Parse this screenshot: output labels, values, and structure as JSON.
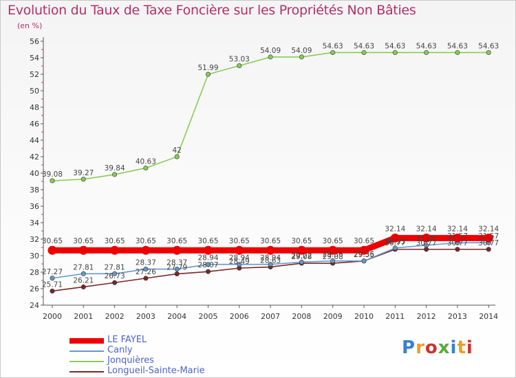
{
  "title": "Evolution du Taux de Taxe Foncière sur les Propriétés Non Bâties",
  "unit": "(en %)",
  "logo": {
    "text": "Proxiti",
    "colors": [
      "#3a7fcf",
      "#e8a020",
      "#cc3333",
      "#5aaa3a",
      "#3a7fcf",
      "#e8a020",
      "#cc3333"
    ]
  },
  "chart_data": {
    "type": "line",
    "title": "Evolution du Taux de Taxe Foncière sur les Propriétés Non Bâties",
    "ylabel": "(en %)",
    "xlabel": "",
    "ylim": [
      24,
      56
    ],
    "yticks": [
      24,
      26,
      28,
      30,
      32,
      34,
      36,
      38,
      40,
      42,
      44,
      46,
      48,
      50,
      52,
      54,
      56
    ],
    "grid": false,
    "legend_position": "bottom-left",
    "categories": [
      "2000",
      "2001",
      "2002",
      "2003",
      "2004",
      "2005",
      "2006",
      "2007",
      "2008",
      "2009",
      "2010",
      "2011",
      "2012",
      "2013",
      "2014"
    ],
    "series": [
      {
        "name": "Jonquières",
        "color": "#88cc55",
        "values": [
          39.08,
          39.27,
          39.84,
          40.63,
          42,
          51.99,
          53.03,
          54.09,
          54.09,
          54.63,
          54.63,
          54.63,
          54.63,
          54.63,
          54.63
        ],
        "labels": [
          "39.08",
          "39.27",
          "39.84",
          "40.63",
          "42",
          "51.99",
          "53.03",
          "54.09",
          "54.09",
          "54.63",
          "54.63",
          "54.63",
          "54.63",
          "54.63",
          "54.63"
        ]
      },
      {
        "name": "Longueil-Sainte-Marie",
        "color": "#7a2626",
        "values": [
          25.71,
          26.21,
          26.73,
          27.26,
          27.79,
          28.07,
          28.49,
          28.63,
          29.08,
          29.08,
          29.35,
          30.77,
          30.77,
          30.77,
          30.77
        ],
        "labels": [
          "25.71",
          "26.21",
          "26.73",
          "27.26",
          "27.79",
          "28.07",
          "28.49",
          "28.63",
          "29.08",
          "29.08",
          "29.35",
          "30.77",
          "30.77",
          "30.77",
          "30.77"
        ]
      },
      {
        "name": "Canly",
        "color": "#6699cc",
        "values": [
          27.27,
          27.81,
          27.81,
          28.37,
          28.37,
          28.94,
          28.94,
          28.94,
          29.22,
          29.36,
          29.36,
          30.93,
          31.26,
          31.57,
          31.57
        ],
        "labels": [
          "27.27",
          "27.81",
          "27.81",
          "28.37",
          "28.37",
          "28.94",
          "28.94",
          "28.94",
          "29.22",
          "29.36",
          "29.36",
          "30.93",
          "31.26",
          "31.57",
          "31.57"
        ]
      },
      {
        "name": "LE FAYEL",
        "color": "#ee0000",
        "values": [
          30.65,
          30.65,
          30.65,
          30.65,
          30.65,
          30.65,
          30.65,
          30.65,
          30.65,
          30.65,
          30.65,
          32.14,
          32.14,
          32.14,
          32.14
        ],
        "labels": [
          "30.65",
          "30.65",
          "30.65",
          "30.65",
          "30.65",
          "30.65",
          "30.65",
          "30.65",
          "30.65",
          "30.65",
          "30.65",
          "32.14",
          "32.14",
          "32.14",
          "32.14"
        ]
      }
    ]
  },
  "legend": [
    {
      "label": "LE FAYEL",
      "color": "#ee0000",
      "thickness": 8
    },
    {
      "label": "Canly",
      "color": "#6699cc",
      "thickness": 2
    },
    {
      "label": "Jonquières",
      "color": "#88cc55",
      "thickness": 2
    },
    {
      "label": "Longueil-Sainte-Marie",
      "color": "#7a2626",
      "thickness": 2
    }
  ]
}
